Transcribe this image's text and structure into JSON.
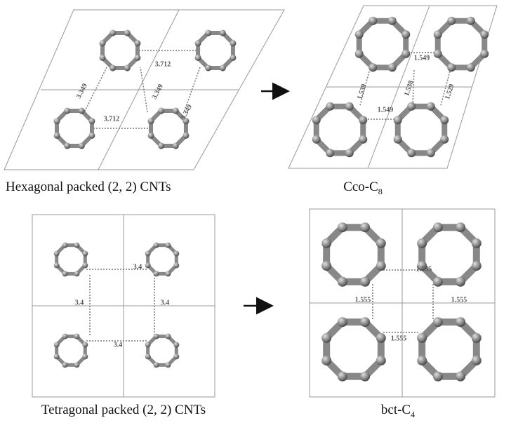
{
  "panels": [
    {
      "caption": {
        "text": "Hexagonal packed (2, 2) CNTs"
      },
      "distances": [
        "3.712",
        "3.349",
        "3.349",
        "3.349",
        "3.712"
      ]
    },
    {
      "caption": {
        "text": "Cco-C",
        "sub": "8"
      },
      "distances": [
        "1.549",
        "1.549",
        "1.539",
        "1.538",
        "1.529"
      ]
    },
    {
      "caption": {
        "text": "Tetragonal packed (2, 2) CNTs"
      },
      "distances": [
        "3.4",
        "3.4",
        "3.4",
        "3.4"
      ]
    },
    {
      "caption": {
        "text": "bct-C",
        "sub": "4"
      },
      "distances": [
        "1.555",
        "1.555",
        "1.555",
        "1.555"
      ]
    }
  ]
}
